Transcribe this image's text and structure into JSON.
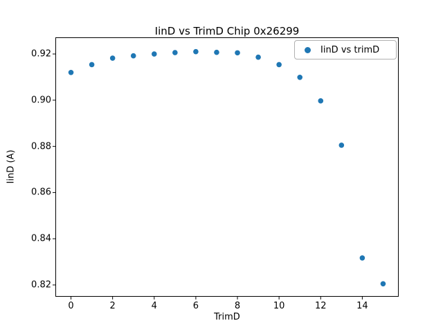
{
  "chart_data": {
    "type": "scatter",
    "title": "IinD vs TrimD Chip 0x26299",
    "xlabel": "TrimD",
    "ylabel": "IinD (A)",
    "legend_entries": [
      "IinD vs trimD"
    ],
    "legend_position": "upper right",
    "marker_color": "#1f77b4",
    "x": [
      0,
      1,
      2,
      3,
      4,
      5,
      6,
      7,
      8,
      9,
      10,
      11,
      12,
      13,
      14,
      15
    ],
    "y": [
      0.912,
      0.9154,
      0.9182,
      0.9192,
      0.92,
      0.9206,
      0.921,
      0.9207,
      0.9205,
      0.9186,
      0.9154,
      0.9099,
      0.8997,
      0.8805,
      0.8317,
      0.8205
    ],
    "x_ticks": [
      0,
      2,
      4,
      6,
      8,
      10,
      12,
      14
    ],
    "y_ticks": [
      0.82,
      0.84,
      0.86,
      0.88,
      0.9,
      0.92
    ],
    "xlim": [
      -0.75,
      15.75
    ],
    "ylim": [
      0.8149,
      0.9272
    ],
    "grid": false
  }
}
